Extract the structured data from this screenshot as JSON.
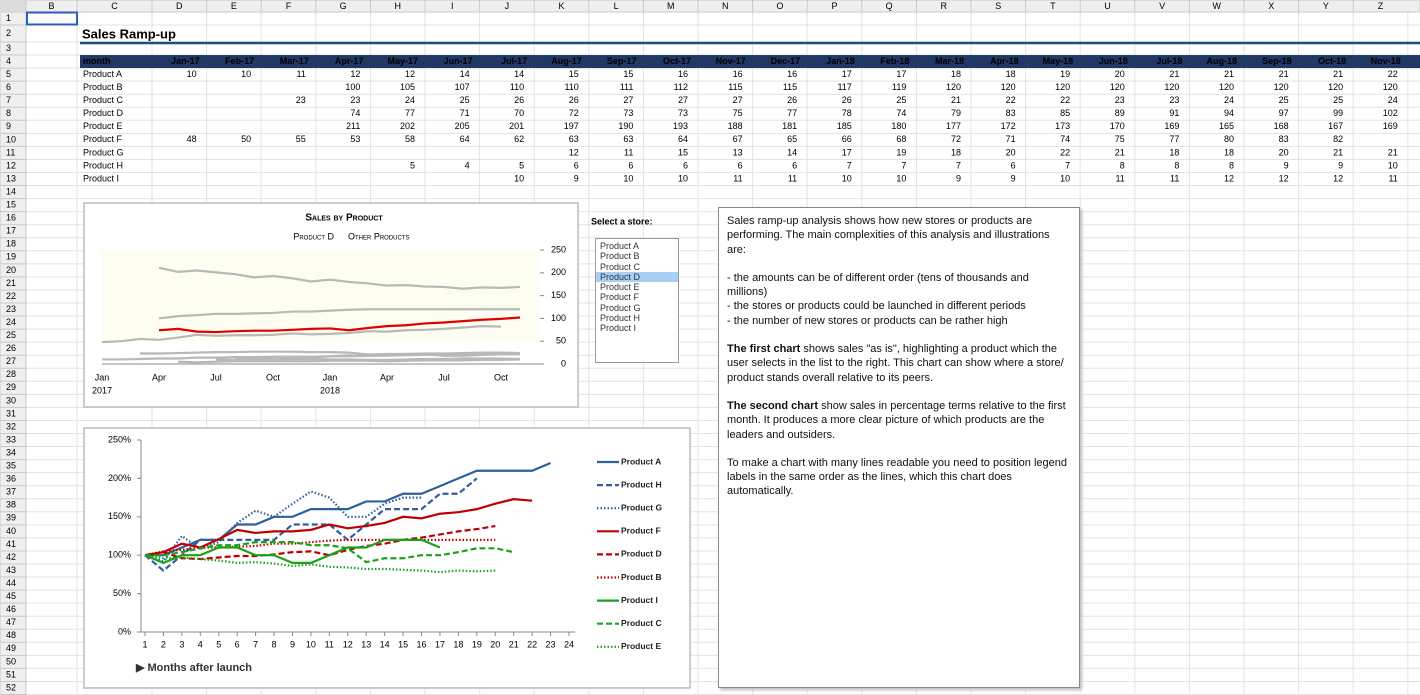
{
  "sheet": {
    "column_headers": [
      "B",
      "C",
      "D",
      "E",
      "F",
      "G",
      "H",
      "I",
      "J",
      "K",
      "L",
      "M",
      "N",
      "O",
      "P",
      "Q",
      "R",
      "S",
      "T",
      "U",
      "V",
      "W",
      "X",
      "Y",
      "Z"
    ],
    "row_numbers": [
      1,
      2,
      3,
      4,
      5,
      6,
      7,
      8,
      9,
      10,
      11,
      12,
      13,
      14,
      15,
      16,
      17,
      18,
      19,
      20,
      21,
      22,
      23,
      24,
      25,
      26,
      27,
      28,
      29,
      30,
      31,
      32,
      33,
      34,
      35,
      36,
      37,
      38,
      39,
      40,
      41,
      42,
      43,
      44,
      45,
      46,
      47,
      48,
      49,
      50,
      51,
      52
    ]
  },
  "title": "Sales Ramp-up",
  "table": {
    "header": [
      "month",
      "Jan-17",
      "Feb-17",
      "Mar-17",
      "Apr-17",
      "May-17",
      "Jun-17",
      "Jul-17",
      "Aug-17",
      "Sep-17",
      "Oct-17",
      "Nov-17",
      "Dec-17",
      "Jan-18",
      "Feb-18",
      "Mar-18",
      "Apr-18",
      "May-18",
      "Jun-18",
      "Jul-18",
      "Aug-18",
      "Sep-18",
      "Oct-18",
      "Nov-18"
    ],
    "rows": [
      [
        "Product A",
        10,
        10,
        11,
        12,
        12,
        14,
        14,
        15,
        15,
        16,
        16,
        16,
        17,
        17,
        18,
        18,
        19,
        20,
        21,
        21,
        21,
        21,
        22
      ],
      [
        "Product B",
        null,
        null,
        null,
        100,
        105,
        107,
        110,
        110,
        111,
        112,
        115,
        115,
        117,
        119,
        120,
        120,
        120,
        120,
        120,
        120,
        120,
        120,
        120
      ],
      [
        "Product C",
        null,
        null,
        23,
        23,
        24,
        25,
        26,
        26,
        27,
        27,
        27,
        26,
        26,
        25,
        21,
        22,
        22,
        23,
        23,
        24,
        25,
        25,
        24
      ],
      [
        "Product D",
        null,
        null,
        null,
        74,
        77,
        71,
        70,
        72,
        73,
        73,
        75,
        77,
        78,
        74,
        79,
        83,
        85,
        89,
        91,
        94,
        97,
        99,
        102
      ],
      [
        "Product E",
        null,
        null,
        null,
        211,
        202,
        205,
        201,
        197,
        190,
        193,
        188,
        181,
        185,
        180,
        177,
        172,
        173,
        170,
        169,
        165,
        168,
        167,
        169
      ],
      [
        "Product F",
        48,
        50,
        55,
        53,
        58,
        64,
        62,
        63,
        63,
        64,
        67,
        65,
        66,
        68,
        72,
        71,
        74,
        75,
        77,
        80,
        83,
        82,
        null
      ],
      [
        "Product G",
        null,
        null,
        null,
        null,
        null,
        null,
        null,
        12,
        11,
        15,
        13,
        14,
        17,
        19,
        18,
        20,
        22,
        21,
        18,
        18,
        20,
        21,
        21
      ],
      [
        "Product H",
        null,
        null,
        null,
        null,
        5,
        4,
        5,
        6,
        6,
        6,
        6,
        6,
        7,
        7,
        7,
        6,
        7,
        8,
        8,
        8,
        9,
        9,
        10
      ],
      [
        "Product I",
        null,
        null,
        null,
        null,
        null,
        null,
        10,
        9,
        10,
        10,
        11,
        11,
        10,
        10,
        9,
        9,
        10,
        11,
        11,
        12,
        12,
        12,
        11
      ]
    ]
  },
  "chart1": {
    "type": "line",
    "title": "Sales by Product",
    "legend": [
      "Product D",
      "Other Products"
    ],
    "ylim": [
      0,
      250
    ],
    "yticks": [
      0,
      50,
      100,
      150,
      200,
      250
    ],
    "xtick_labels": [
      "Jan",
      "Apr",
      "Jul",
      "Oct",
      "Jan",
      "Apr",
      "Jul",
      "Oct"
    ],
    "year_labels": [
      "2017",
      "2018"
    ],
    "highlight_color": "#e00000",
    "other_color": "#b8b8b8"
  },
  "select_label": "Select a store:",
  "store_list": {
    "items": [
      "Product A",
      "Product B",
      "Product C",
      "Product D",
      "Product E",
      "Product F",
      "Product G",
      "Product H",
      "Product I"
    ],
    "selected": 3
  },
  "chart2": {
    "type": "line",
    "x_label": "▶ Months after launch",
    "ylim": [
      0,
      250
    ],
    "yticks": [
      {
        "value": 0,
        "label": "0%"
      },
      {
        "value": 50,
        "label": "50%"
      },
      {
        "value": 100,
        "label": "100%"
      },
      {
        "value": 150,
        "label": "150%"
      },
      {
        "value": 200,
        "label": "200%"
      },
      {
        "value": 250,
        "label": "250%"
      }
    ],
    "xlim": [
      1,
      24
    ],
    "xticks": [
      1,
      2,
      3,
      4,
      5,
      6,
      7,
      8,
      9,
      10,
      11,
      12,
      13,
      14,
      15,
      16,
      17,
      18,
      19,
      20,
      21,
      22,
      23,
      24
    ],
    "series": [
      {
        "name": "Product A",
        "color": "#2e5f9e",
        "dash": "solid",
        "values": [
          100,
          100,
          110,
          120,
          120,
          140,
          140,
          150,
          150,
          160,
          160,
          160,
          170,
          170,
          180,
          180,
          190,
          200,
          210,
          210,
          210,
          210,
          220
        ]
      },
      {
        "name": "Product H",
        "color": "#2e5f9e",
        "dash": "dashed",
        "values": [
          100,
          80,
          100,
          120,
          120,
          120,
          120,
          120,
          140,
          140,
          140,
          120,
          140,
          160,
          160,
          160,
          180,
          180,
          200
        ]
      },
      {
        "name": "Product G",
        "color": "#2e5f9e",
        "dash": "dotted",
        "values": [
          100,
          92,
          125,
          108,
          117,
          142,
          158,
          150,
          167,
          183,
          175,
          150,
          150,
          167,
          175,
          175
        ]
      },
      {
        "name": "Product F",
        "color": "#c00000",
        "dash": "solid",
        "values": [
          100,
          104,
          115,
          110,
          121,
          133,
          129,
          131,
          131,
          133,
          140,
          135,
          138,
          142,
          150,
          148,
          154,
          156,
          160,
          167,
          173,
          171
        ]
      },
      {
        "name": "Product D",
        "color": "#c00000",
        "dash": "dashed",
        "values": [
          100,
          104,
          96,
          95,
          97,
          99,
          99,
          101,
          104,
          105,
          100,
          107,
          112,
          115,
          120,
          123,
          127,
          131,
          134,
          138
        ]
      },
      {
        "name": "Product B",
        "color": "#c00000",
        "dash": "dotted",
        "values": [
          100,
          105,
          107,
          110,
          110,
          111,
          112,
          115,
          115,
          117,
          119,
          120,
          120,
          120,
          120,
          120,
          120,
          120,
          120,
          120
        ]
      },
      {
        "name": "Product I",
        "color": "#1aa31a",
        "dash": "solid",
        "values": [
          100,
          90,
          100,
          100,
          110,
          110,
          100,
          100,
          90,
          90,
          100,
          110,
          110,
          120,
          120,
          120,
          110
        ]
      },
      {
        "name": "Product C",
        "color": "#1aa31a",
        "dash": "dashed",
        "values": [
          100,
          100,
          104,
          109,
          113,
          113,
          117,
          117,
          117,
          113,
          113,
          109,
          91,
          96,
          96,
          100,
          100,
          104,
          109,
          109,
          104
        ]
      },
      {
        "name": "Product E",
        "color": "#1aa31a",
        "dash": "dotted",
        "values": [
          100,
          96,
          97,
          95,
          93,
          90,
          91,
          89,
          86,
          88,
          85,
          84,
          82,
          82,
          81,
          80,
          78,
          80,
          79,
          80
        ]
      }
    ]
  },
  "note": {
    "blocks": [
      [
        [
          {
            "text": "Sales ramp-up analysis shows how new stores or products are performing. The main complexities of this analysis and illustrations are:",
            "bold": false
          }
        ]
      ],
      [
        [
          {
            "text": "- the amounts can be of different order (tens of thousands and millions)",
            "bold": false
          }
        ],
        [
          {
            "text": "- the stores or products could be launched in different periods",
            "bold": false
          }
        ],
        [
          {
            "text": "- the number of new stores or products can be rather high",
            "bold": false
          }
        ]
      ],
      [
        [
          {
            "text": "The first chart",
            "bold": true
          },
          {
            "text": " shows sales \"as is\", highlighting a product which the user selects in the list to the right. This chart can show where a store/ product stands overall relative to its peers.",
            "bold": false
          }
        ]
      ],
      [
        [
          {
            "text": "The second chart",
            "bold": true
          },
          {
            "text": " show sales in percentage terms relative to the first month. It produces a more clear picture of which products are the leaders and outsiders.",
            "bold": false
          }
        ]
      ],
      [
        [
          {
            "text": "To make a chart with many lines readable you need to position legend labels in the same order as the lines, which this chart does automatically.",
            "bold": false
          }
        ]
      ]
    ]
  }
}
